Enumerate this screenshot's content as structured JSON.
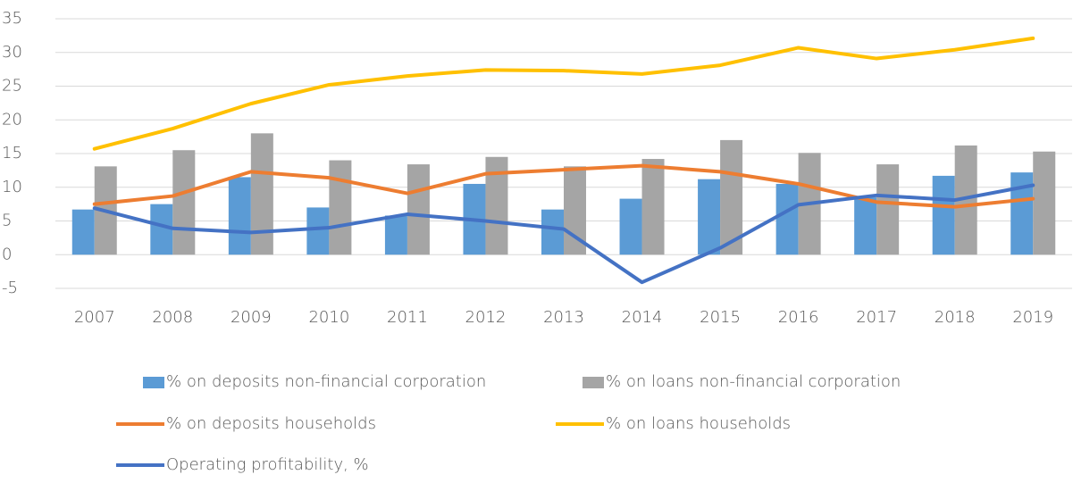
{
  "chart_data": {
    "type": "combo",
    "categories": [
      "2007",
      "2008",
      "2009",
      "2010",
      "2011",
      "2012",
      "2013",
      "2014",
      "2015",
      "2016",
      "2017",
      "2018",
      "2019"
    ],
    "series": [
      {
        "name": "% on deposits non-financial corporation",
        "type": "bar",
        "color": "#5b9bd5",
        "values": [
          6.7,
          7.5,
          11.5,
          7.0,
          5.8,
          10.5,
          6.7,
          8.3,
          11.2,
          10.5,
          8.5,
          11.7,
          12.2
        ]
      },
      {
        "name": "% on loans non-financial corporation",
        "type": "bar",
        "color": "#a5a5a5",
        "values": [
          13.1,
          15.5,
          18.0,
          14.0,
          13.4,
          14.5,
          13.1,
          14.2,
          17.0,
          15.1,
          13.4,
          16.2,
          15.3
        ]
      },
      {
        "name": "% on deposits households",
        "type": "line",
        "color": "#ed7d31",
        "values": [
          7.5,
          8.7,
          12.3,
          11.4,
          9.1,
          12.0,
          12.6,
          13.2,
          12.3,
          10.5,
          7.8,
          7.1,
          8.3
        ]
      },
      {
        "name": "% on loans households",
        "type": "line",
        "color": "#ffc000",
        "values": [
          15.7,
          18.7,
          22.4,
          25.2,
          26.5,
          27.4,
          27.3,
          26.8,
          28.1,
          30.7,
          29.1,
          30.4,
          32.1
        ]
      },
      {
        "name": "Operating profitability, %",
        "type": "line",
        "color": "#4472c4",
        "values": [
          6.9,
          3.9,
          3.3,
          4.0,
          6.0,
          5.0,
          3.8,
          -4.1,
          1.0,
          7.4,
          8.8,
          8.1,
          10.3
        ]
      }
    ],
    "ylim": [
      -5,
      35
    ],
    "yticks": [
      -5,
      0,
      5,
      10,
      15,
      20,
      25,
      30,
      35
    ],
    "grid": true,
    "legend": "bottom"
  }
}
